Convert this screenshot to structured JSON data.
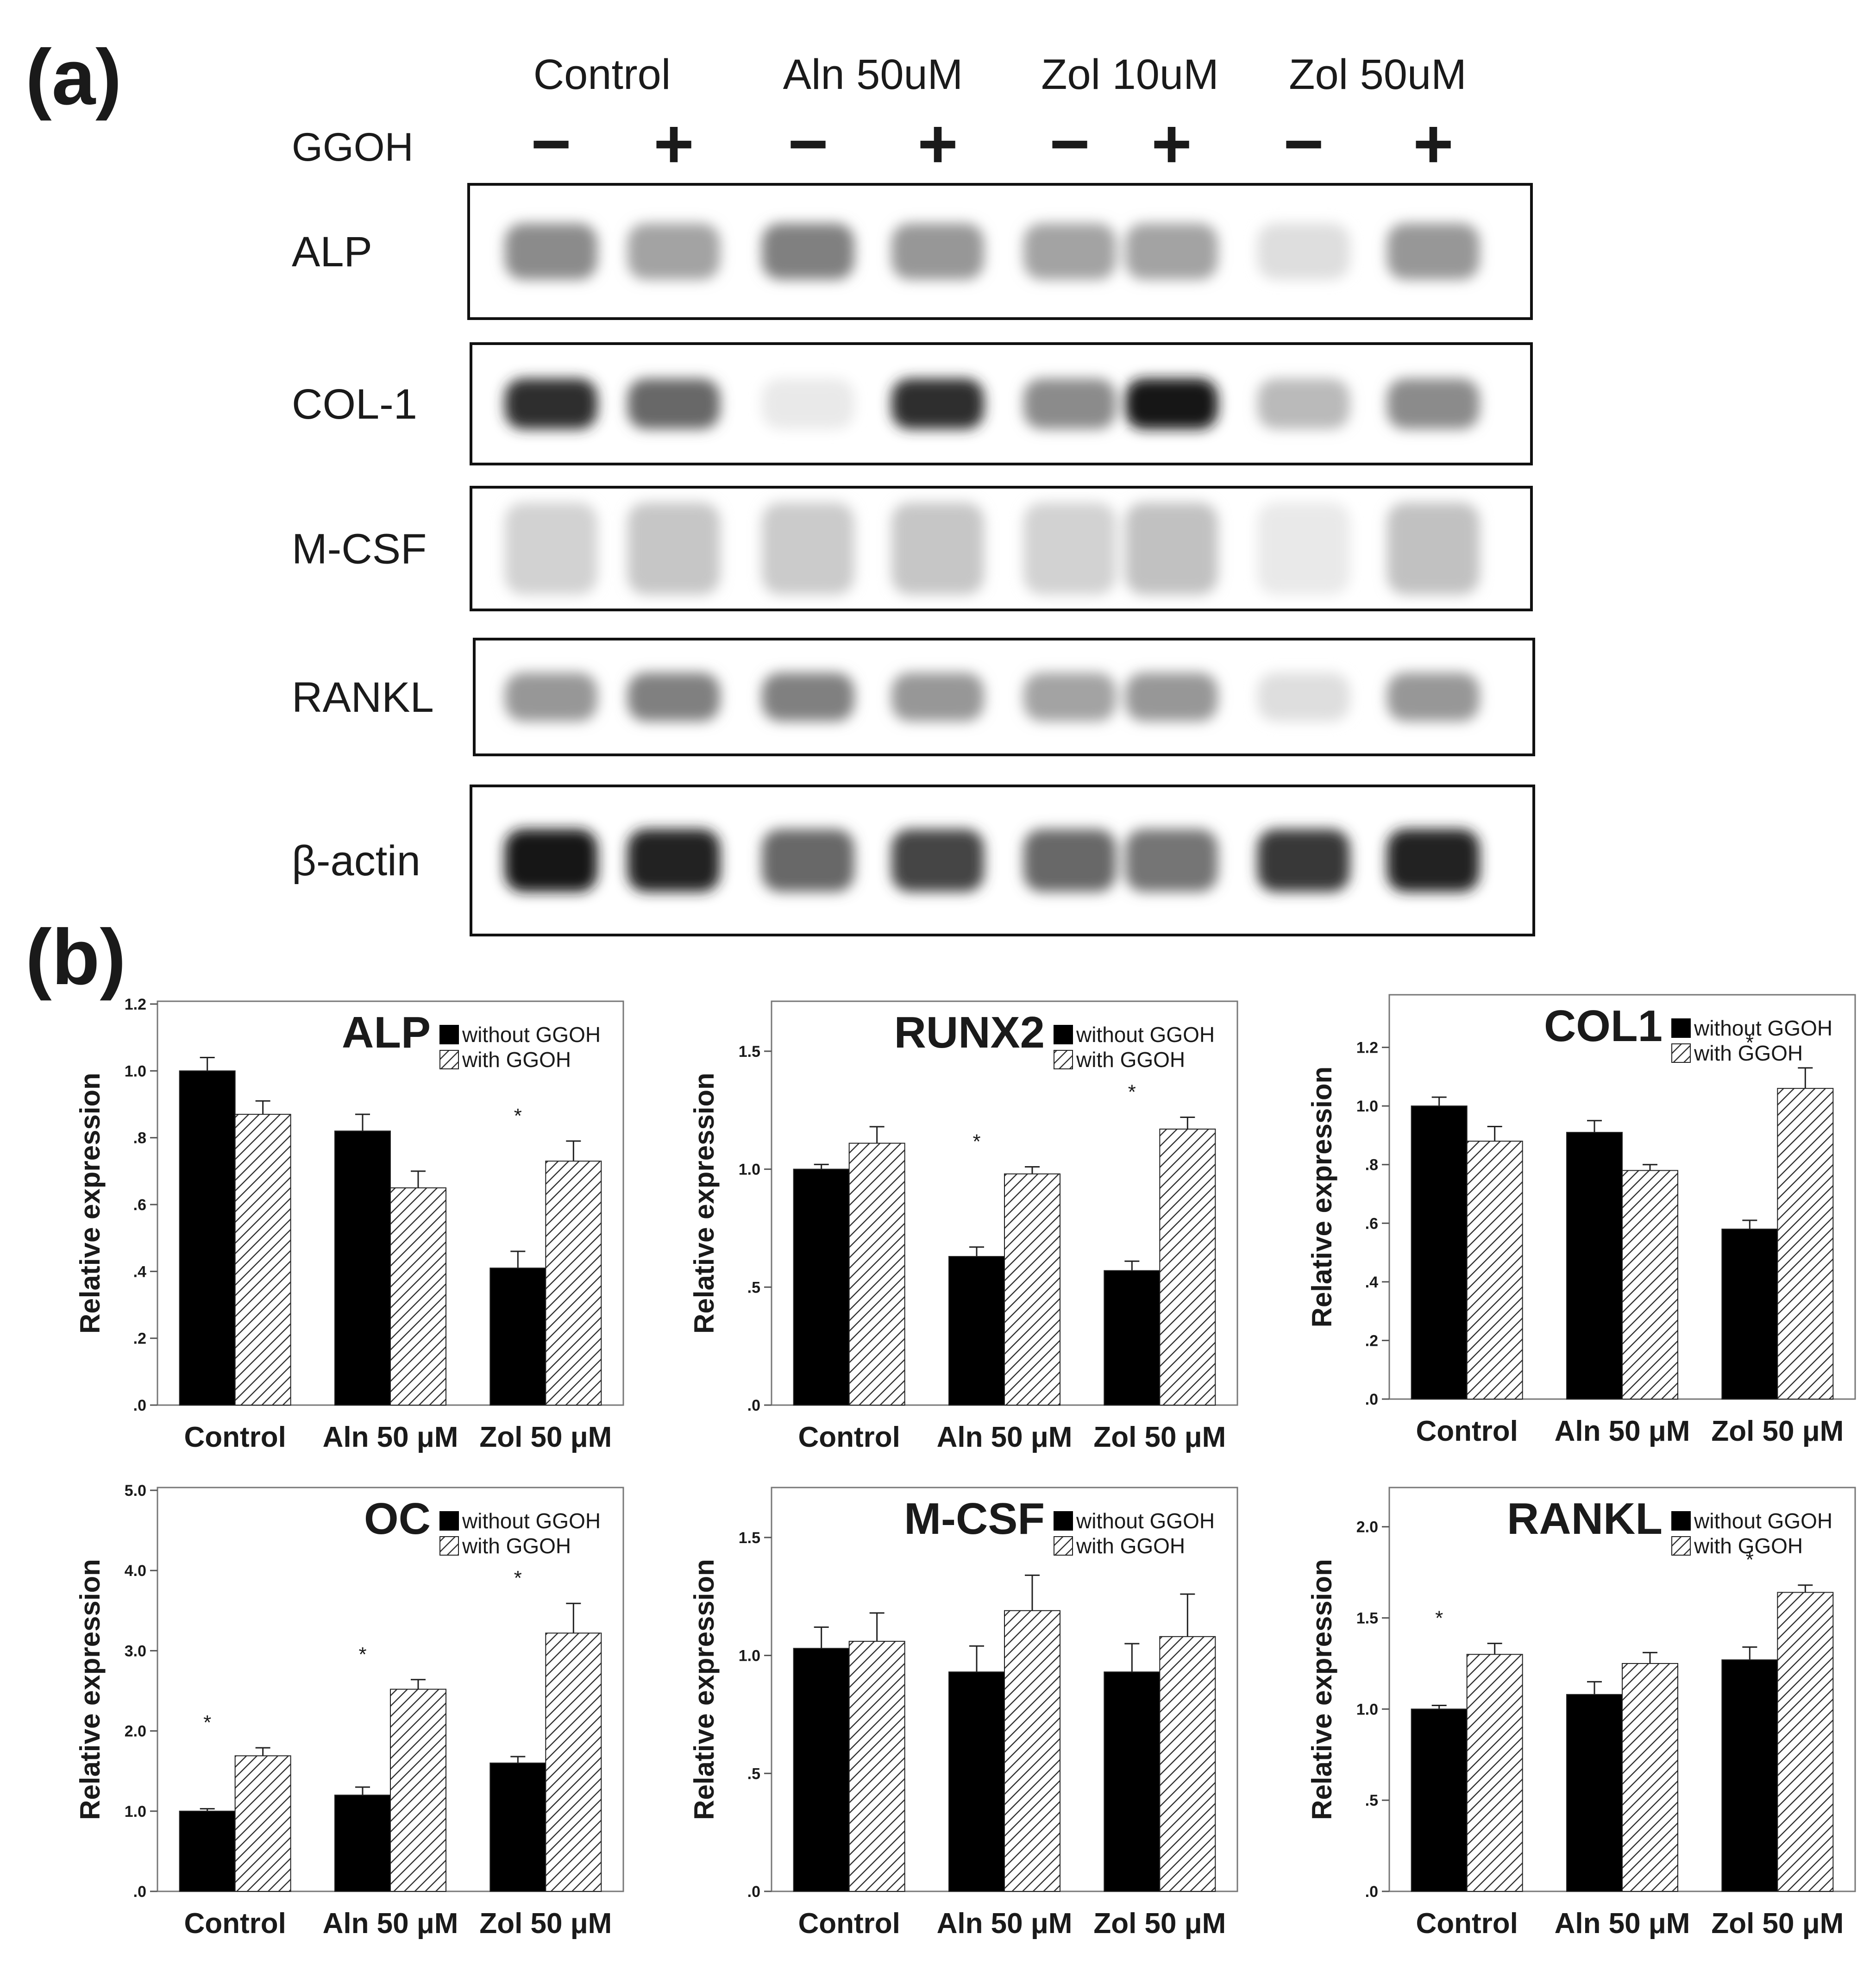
{
  "panel_a": {
    "label": "(a)",
    "treatments": [
      "Control",
      "Aln 50uM",
      "Zol 10uM",
      "Zol 50uM"
    ],
    "ggoh_label": "GGOH",
    "ggoh_signs": [
      "−",
      "+",
      "−",
      "+",
      "−",
      "+",
      "−",
      "+"
    ],
    "blots": [
      {
        "name": "ALP",
        "intensity": [
          0.45,
          0.35,
          0.5,
          0.4,
          0.35,
          0.35,
          0.1,
          0.4
        ]
      },
      {
        "name": "COL-1",
        "intensity": [
          0.85,
          0.6,
          0.05,
          0.85,
          0.45,
          0.95,
          0.25,
          0.45
        ]
      },
      {
        "name": "M-CSF",
        "intensity": [
          0.15,
          0.2,
          0.18,
          0.2,
          0.15,
          0.22,
          0.05,
          0.22
        ]
      },
      {
        "name": "RANKL",
        "intensity": [
          0.4,
          0.5,
          0.5,
          0.4,
          0.35,
          0.4,
          0.1,
          0.4
        ]
      },
      {
        "name": "β-actin",
        "intensity": [
          0.95,
          0.9,
          0.6,
          0.75,
          0.6,
          0.55,
          0.8,
          0.9
        ]
      }
    ]
  },
  "panel_b": {
    "label": "(b)"
  },
  "chart_data": [
    {
      "type": "bar",
      "title": "ALP",
      "ylabel": "Relative expression",
      "categories": [
        "Control",
        "Aln 50 μM",
        "Zol 50 μM"
      ],
      "ylim": [
        0,
        1.2
      ],
      "yticks": [
        ".0",
        ".2",
        ".4",
        ".6",
        ".8",
        "1.0",
        "1.2"
      ],
      "ytick_values": [
        0,
        0.2,
        0.4,
        0.6,
        0.8,
        1.0,
        1.2
      ],
      "series": [
        {
          "name": "without GGOH",
          "values": [
            1.0,
            0.82,
            0.41
          ],
          "errors": [
            0.04,
            0.05,
            0.05
          ]
        },
        {
          "name": "with GGOH",
          "values": [
            0.87,
            0.65,
            0.73
          ],
          "errors": [
            0.04,
            0.05,
            0.06
          ]
        }
      ],
      "significance": [
        "",
        "",
        "*"
      ]
    },
    {
      "type": "bar",
      "title": "RUNX2",
      "ylabel": "Relative expression",
      "categories": [
        "Control",
        "Aln 50 μM",
        "Zol 50 μM"
      ],
      "ylim": [
        0,
        1.7
      ],
      "yticks": [
        ".0",
        ".5",
        "1.0",
        "1.5"
      ],
      "ytick_values": [
        0,
        0.5,
        1.0,
        1.5
      ],
      "series": [
        {
          "name": "without GGOH",
          "values": [
            1.0,
            0.63,
            0.57
          ],
          "errors": [
            0.02,
            0.04,
            0.04
          ]
        },
        {
          "name": "with GGOH",
          "values": [
            1.11,
            0.98,
            1.17
          ],
          "errors": [
            0.07,
            0.03,
            0.05
          ]
        }
      ],
      "significance": [
        "",
        "*",
        "*"
      ]
    },
    {
      "type": "bar",
      "title": "COL1",
      "ylabel": "Relative expression",
      "categories": [
        "Control",
        "Aln 50 μM",
        "Zol 50 μM"
      ],
      "ylim": [
        0,
        1.37
      ],
      "yticks": [
        ".0",
        ".2",
        ".4",
        ".6",
        ".8",
        "1.0",
        "1.2"
      ],
      "ytick_values": [
        0,
        0.2,
        0.4,
        0.6,
        0.8,
        1.0,
        1.2
      ],
      "series": [
        {
          "name": "without GGOH",
          "values": [
            1.0,
            0.91,
            0.58
          ],
          "errors": [
            0.03,
            0.04,
            0.03
          ]
        },
        {
          "name": "with GGOH",
          "values": [
            0.88,
            0.78,
            1.06
          ],
          "errors": [
            0.05,
            0.02,
            0.07
          ]
        }
      ],
      "significance": [
        "",
        "",
        "*"
      ]
    },
    {
      "type": "bar",
      "title": "OC",
      "ylabel": "Relative expression",
      "categories": [
        "Control",
        "Aln 50 μM",
        "Zol 50 μM"
      ],
      "ylim": [
        0,
        5.0
      ],
      "yticks": [
        ".0",
        "1.0",
        "2.0",
        "3.0",
        "4.0",
        "5.0"
      ],
      "ytick_values": [
        0,
        1,
        2,
        3,
        4,
        5
      ],
      "series": [
        {
          "name": "without GGOH",
          "values": [
            1.0,
            1.2,
            1.6
          ],
          "errors": [
            0.03,
            0.1,
            0.08
          ]
        },
        {
          "name": "with GGOH",
          "values": [
            1.69,
            2.52,
            3.22
          ],
          "errors": [
            0.1,
            0.12,
            0.37
          ]
        }
      ],
      "significance": [
        "*",
        "*",
        "*"
      ]
    },
    {
      "type": "bar",
      "title": "M-CSF",
      "ylabel": "Relative expression",
      "categories": [
        "Control",
        "Aln 50 μM",
        "Zol 50 μM"
      ],
      "ylim": [
        0,
        1.7
      ],
      "yticks": [
        ".0",
        ".5",
        "1.0",
        "1.5"
      ],
      "ytick_values": [
        0,
        0.5,
        1.0,
        1.5
      ],
      "series": [
        {
          "name": "without GGOH",
          "values": [
            1.03,
            0.93,
            0.93
          ],
          "errors": [
            0.09,
            0.11,
            0.12
          ]
        },
        {
          "name": "with GGOH",
          "values": [
            1.06,
            1.19,
            1.08
          ],
          "errors": [
            0.12,
            0.15,
            0.18
          ]
        }
      ],
      "significance": [
        "",
        "",
        ""
      ]
    },
    {
      "type": "bar",
      "title": "RANKL",
      "ylabel": "Relative expression",
      "categories": [
        "Control",
        "Aln 50 μM",
        "Zol 50 μM"
      ],
      "ylim": [
        0,
        2.2
      ],
      "yticks": [
        ".0",
        ".5",
        "1.0",
        "1.5",
        "2.0"
      ],
      "ytick_values": [
        0,
        0.5,
        1.0,
        1.5,
        2.0
      ],
      "series": [
        {
          "name": "without GGOH",
          "values": [
            1.0,
            1.08,
            1.27
          ],
          "errors": [
            0.02,
            0.07,
            0.07
          ]
        },
        {
          "name": "with GGOH",
          "values": [
            1.3,
            1.25,
            1.64
          ],
          "errors": [
            0.06,
            0.06,
            0.04
          ]
        }
      ],
      "significance": [
        "*",
        "",
        "*"
      ]
    }
  ]
}
